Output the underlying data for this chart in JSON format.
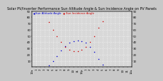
{
  "title": "Solar PV/Inverter Performance Sun Altitude Angle & Sun Incidence Angle on PV Panels",
  "legend_blue": "Sun Altitude Angle",
  "legend_red": "Sun Incidence Angle",
  "ylim": [
    0,
    90
  ],
  "yticks": [
    10,
    20,
    30,
    40,
    50,
    60,
    70,
    80,
    90
  ],
  "background_color": "#c8c8c8",
  "plot_bg": "#d8d8d8",
  "title_fontsize": 3.5,
  "tick_fontsize": 2.8,
  "legend_fontsize": 2.8,
  "blue_color": "#0000cc",
  "red_color": "#cc0000",
  "blue_x": [
    4,
    5,
    6,
    7,
    8,
    9,
    10,
    11,
    12,
    13,
    14,
    15,
    16,
    17
  ],
  "blue_y": [
    3,
    10,
    18,
    27,
    34,
    39,
    42,
    43,
    42,
    39,
    33,
    24,
    13,
    4
  ],
  "red_x": [
    4,
    5,
    6,
    7,
    8,
    9,
    10,
    11,
    12,
    13,
    14,
    15,
    16,
    17
  ],
  "red_y": [
    72,
    60,
    50,
    40,
    33,
    28,
    26,
    26,
    28,
    32,
    40,
    50,
    63,
    74
  ],
  "xtick_labels": [
    "12a",
    "1",
    "2",
    "3",
    "4",
    "5",
    "6",
    "7",
    "8",
    "9",
    "10",
    "11",
    "12p",
    "1",
    "2",
    "3",
    "4",
    "5",
    "6",
    "7",
    "8",
    "9",
    "10",
    "11",
    "12a"
  ],
  "grid_color": "#ffffff",
  "dot_size": 1.2,
  "xlim": [
    0,
    24
  ]
}
